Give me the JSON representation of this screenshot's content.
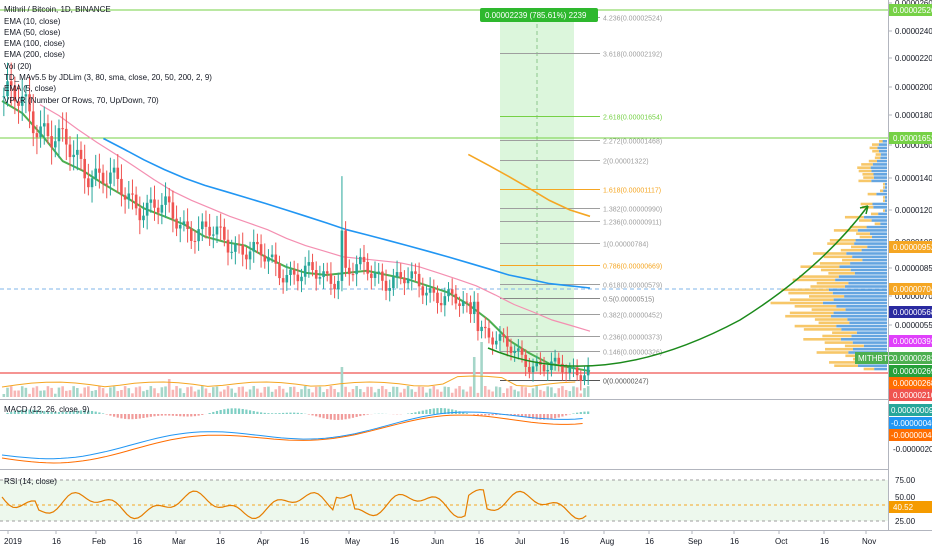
{
  "header": {
    "symbol_title": "Mithril / Bitcoin, 1D, BINANCE",
    "indicators": [
      "EMA (10, close)",
      "EMA (50, close)",
      "EMA (100, close)",
      "EMA (200, close)",
      "Vol (20)",
      "TD_MAv5.5 by JDLim (3, 80, sma, close, 20, 50, 200, 2, 9)",
      "EMA (5, close)",
      "VPVR (Number Of Rows, 70, Up/Down, 70)"
    ]
  },
  "measure_box": {
    "text": "0.00002239 (785.61%) 2239",
    "color": "#26a69a"
  },
  "fib_levels": [
    {
      "label": "4.236(0.00002524)",
      "value": 2.524e-05
    },
    {
      "label": "3.618(0.00002192)",
      "value": 2.192e-05
    },
    {
      "label": "2.618(0.00001654)",
      "value": 1.654e-05
    },
    {
      "label": "2.272(0.00001468)",
      "value": 1.468e-05
    },
    {
      "label": "2(0.00001322)",
      "value": 1.322e-05
    },
    {
      "label": "1.618(0.00001117)",
      "value": 1.117e-05
    },
    {
      "label": "1.382(0.00000990)",
      "value": 9.9e-06
    },
    {
      "label": "1.236(0.00000911)",
      "value": 9.11e-06
    },
    {
      "label": "1(0.00000784)",
      "value": 7.84e-06
    },
    {
      "label": "0.786(0.00000669)",
      "value": 6.69e-06
    },
    {
      "label": "0.618(0.00000579)",
      "value": 5.79e-06
    },
    {
      "label": "0.5(0.00000515)",
      "value": 5.15e-06
    },
    {
      "label": "0.382(0.00000452)",
      "value": 4.52e-06
    },
    {
      "label": "0.236(0.00000373)",
      "value": 3.73e-06
    },
    {
      "label": "0.146(0.00000326)",
      "value": 3.26e-06
    },
    {
      "label": "0(0.00000247)",
      "value": 2.47e-06
    }
  ],
  "price_axis": {
    "ticks": [
      "0.00002600",
      "0.00002400",
      "0.00002200",
      "0.00002000",
      "0.00001800",
      "0.00001600",
      "0.00001400",
      "0.00001200",
      "0.00001000",
      "0.00000850",
      "0.00000700",
      "0.00000550"
    ],
    "tags": [
      {
        "text": "0.00002526",
        "color": "#76d146",
        "value": 2.526e-05
      },
      {
        "text": "0.00001652",
        "color": "#76d146",
        "value": 1.652e-05
      },
      {
        "text": "0.00000952",
        "color": "#f5a623",
        "value": 9.52e-06
      },
      {
        "text": "0.00000704",
        "color": "#f5a623",
        "value": 7.04e-06
      },
      {
        "text": "0.00000568",
        "color": "#2a2aa0",
        "value": 5.68e-06
      },
      {
        "text": "0.00000393",
        "color": "#e040fb",
        "value": 3.93e-06
      },
      {
        "text": "0.00000283",
        "color": "#4caf50",
        "value": 2.83e-06
      },
      {
        "text": "0.00000269",
        "color": "#26a03a",
        "value": 2.69e-06
      },
      {
        "text": "0.00000268",
        "color": "#ff6d00",
        "value": 2.68e-06
      },
      {
        "text": "0.00000210",
        "color": "#ef5350",
        "value": 2.1e-06
      }
    ],
    "symbol_badge": "MITHBTC"
  },
  "macd": {
    "label": "MACD (12, 26, close, 9)",
    "ticks": [
      "-0.00000200"
    ],
    "tags": [
      {
        "text": "0.00000009",
        "color": "#26a69a"
      },
      {
        "text": "-0.00000040",
        "color": "#2196f3"
      },
      {
        "text": "-0.00000048",
        "color": "#ff6d00"
      }
    ]
  },
  "rsi": {
    "label": "RSI (14, close)",
    "ticks": [
      "75.00",
      "50.00",
      "25.00"
    ],
    "tag": {
      "text": "40.52",
      "color": "#f59b00"
    }
  },
  "time_axis": {
    "labels": [
      "2019",
      "16",
      "Feb",
      "16",
      "Mar",
      "16",
      "Apr",
      "16",
      "May",
      "16",
      "Jun",
      "16",
      "Jul",
      "16",
      "Aug",
      "16",
      "Sep",
      "16",
      "Oct",
      "16",
      "Nov"
    ]
  },
  "colors": {
    "candle_up": "#26a69a",
    "candle_down": "#ef5350",
    "ema10": "#4caf50",
    "ema50": "#f48fb1",
    "ema100": "#2196f3",
    "ema200": "#f5a623",
    "arrow": "#1b8a1b",
    "fib_band": "#c8f5c8"
  },
  "chart_data": {
    "type": "candlestick",
    "title": "Mithril / Bitcoin, 1D, BINANCE",
    "yrange": [
      2e-06,
      2.65e-05
    ],
    "series": [
      {
        "name": "EMA (10, close)",
        "values": [
          1.78e-05,
          1.68e-05,
          1.5e-05,
          1.31e-05,
          1.24e-05,
          1.15e-05,
          1.07e-05,
          9.9e-06,
          9.4e-06,
          8.9e-06,
          8.2e-06,
          7.9e-06,
          7.7e-06,
          7.1e-06,
          6.6e-06,
          6.3e-06,
          6.2e-06,
          6.3e-06,
          6.4e-06,
          6.2e-06,
          6e-06,
          5.7e-06,
          5.4e-06,
          4.9e-06,
          4.3e-06,
          3.6e-06,
          3.2e-06,
          2.9e-06,
          2.8e-06,
          2.7e-06
        ]
      },
      {
        "name": "EMA (100, close)",
        "values": [
          null,
          null,
          null,
          null,
          null,
          1.48e-05,
          1.4e-05,
          1.32e-05,
          1.25e-05,
          1.19e-05,
          1.14e-05,
          1.1e-05,
          1.06e-05,
          1.02e-05,
          9.8e-06,
          9.4e-06,
          9e-06,
          8.6e-06,
          8.3e-06,
          8e-06,
          7.7e-06,
          7.4e-06,
          7.1e-06,
          6.8e-06,
          6.5e-06,
          6.2e-06,
          6e-06,
          5.8e-06,
          5.7e-06,
          5.6e-06
        ]
      },
      {
        "name": "EMA (200, close)",
        "values": [
          null,
          null,
          null,
          null,
          null,
          null,
          null,
          null,
          null,
          null,
          null,
          null,
          null,
          null,
          null,
          null,
          null,
          null,
          null,
          null,
          null,
          null,
          null,
          1.36e-05,
          1.28e-05,
          1.2e-05,
          1.12e-05,
          1.04e-05,
          9.8e-06,
          9.4e-06
        ]
      }
    ],
    "candles_close": [
      1.82e-05,
      1.72e-05,
      1.58e-05,
      1.4e-05,
      1.28e-05,
      1.19e-05,
      1.08e-05,
      1.01e-05,
      9.7e-06,
      8.9e-06,
      8.4e-06,
      8e-06,
      7.6e-06,
      6.9e-06,
      6.4e-06,
      6.2e-06,
      6.1e-06,
      6.4e-06,
      6.4e-06,
      6.1e-06,
      5.9e-06,
      5.6e-06,
      5.2e-06,
      4.6e-06,
      3.9e-06,
      3.3e-06,
      3e-06,
      2.8e-06,
      2.7e-06,
      2.8e-06
    ]
  }
}
